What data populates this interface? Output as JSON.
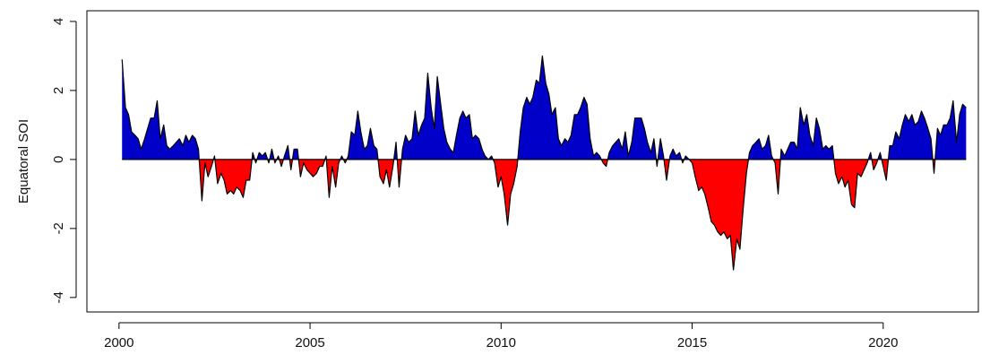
{
  "chart_data": {
    "type": "area",
    "ylabel": "Equatoral SOI",
    "positive_color": "#0000c8",
    "negative_color": "#ff0000",
    "line_color": "#000000",
    "xlim": [
      1999.16,
      2022.49
    ],
    "ylim": [
      -4.42,
      4.31
    ],
    "xticks": [
      2000,
      2005,
      2010,
      2015,
      2020
    ],
    "yticks": [
      -4,
      -2,
      0,
      2,
      4
    ],
    "x": [
      2000.08,
      2000.17,
      2000.25,
      2000.33,
      2000.42,
      2000.5,
      2000.58,
      2000.67,
      2000.75,
      2000.83,
      2000.92,
      2001.0,
      2001.08,
      2001.17,
      2001.25,
      2001.33,
      2001.42,
      2001.5,
      2001.58,
      2001.67,
      2001.75,
      2001.83,
      2001.92,
      2002.0,
      2002.08,
      2002.17,
      2002.25,
      2002.33,
      2002.42,
      2002.5,
      2002.58,
      2002.67,
      2002.75,
      2002.83,
      2002.92,
      2003.0,
      2003.08,
      2003.17,
      2003.25,
      2003.33,
      2003.42,
      2003.5,
      2003.58,
      2003.67,
      2003.75,
      2003.83,
      2003.92,
      2004.0,
      2004.08,
      2004.17,
      2004.25,
      2004.33,
      2004.42,
      2004.5,
      2004.58,
      2004.67,
      2004.75,
      2004.83,
      2004.92,
      2005.0,
      2005.08,
      2005.17,
      2005.25,
      2005.33,
      2005.42,
      2005.5,
      2005.58,
      2005.67,
      2005.75,
      2005.83,
      2005.92,
      2006.0,
      2006.08,
      2006.17,
      2006.25,
      2006.33,
      2006.42,
      2006.5,
      2006.58,
      2006.67,
      2006.75,
      2006.83,
      2006.92,
      2007.0,
      2007.08,
      2007.17,
      2007.25,
      2007.33,
      2007.42,
      2007.5,
      2007.58,
      2007.67,
      2007.75,
      2007.83,
      2007.92,
      2008.0,
      2008.08,
      2008.17,
      2008.25,
      2008.33,
      2008.42,
      2008.5,
      2008.58,
      2008.67,
      2008.75,
      2008.83,
      2008.92,
      2009.0,
      2009.08,
      2009.17,
      2009.25,
      2009.33,
      2009.42,
      2009.5,
      2009.58,
      2009.67,
      2009.75,
      2009.83,
      2009.92,
      2010.0,
      2010.08,
      2010.17,
      2010.25,
      2010.33,
      2010.42,
      2010.5,
      2010.58,
      2010.67,
      2010.75,
      2010.83,
      2010.92,
      2011.0,
      2011.08,
      2011.17,
      2011.25,
      2011.33,
      2011.42,
      2011.5,
      2011.58,
      2011.67,
      2011.75,
      2011.83,
      2011.92,
      2012.0,
      2012.08,
      2012.17,
      2012.25,
      2012.33,
      2012.42,
      2012.5,
      2012.58,
      2012.67,
      2012.75,
      2012.83,
      2012.92,
      2013.0,
      2013.08,
      2013.17,
      2013.25,
      2013.33,
      2013.42,
      2013.5,
      2013.58,
      2013.67,
      2013.75,
      2013.83,
      2013.92,
      2014.0,
      2014.08,
      2014.17,
      2014.25,
      2014.33,
      2014.42,
      2014.5,
      2014.58,
      2014.67,
      2014.75,
      2014.83,
      2014.92,
      2015.0,
      2015.08,
      2015.17,
      2015.25,
      2015.33,
      2015.42,
      2015.5,
      2015.58,
      2015.67,
      2015.75,
      2015.83,
      2015.92,
      2016.0,
      2016.08,
      2016.17,
      2016.25,
      2016.33,
      2016.42,
      2016.5,
      2016.58,
      2016.67,
      2016.75,
      2016.83,
      2016.92,
      2017.0,
      2017.08,
      2017.17,
      2017.25,
      2017.33,
      2017.42,
      2017.5,
      2017.58,
      2017.67,
      2017.75,
      2017.83,
      2017.92,
      2018.0,
      2018.08,
      2018.17,
      2018.25,
      2018.33,
      2018.42,
      2018.5,
      2018.58,
      2018.67,
      2018.75,
      2018.83,
      2018.92,
      2019.0,
      2019.08,
      2019.17,
      2019.25,
      2019.33,
      2019.42,
      2019.5,
      2019.58,
      2019.67,
      2019.75,
      2019.83,
      2019.92,
      2020.0,
      2020.08,
      2020.17,
      2020.25,
      2020.33,
      2020.42,
      2020.5,
      2020.58,
      2020.67,
      2020.75,
      2020.83,
      2020.92,
      2021.0,
      2021.08,
      2021.17,
      2021.25,
      2021.33,
      2021.42,
      2021.5,
      2021.58,
      2021.67,
      2021.75,
      2021.83,
      2021.92,
      2022.0,
      2022.08,
      2022.17
    ],
    "values": [
      2.9,
      1.5,
      1.3,
      0.8,
      0.7,
      0.6,
      0.3,
      0.6,
      0.9,
      1.2,
      1.2,
      1.7,
      0.6,
      1.0,
      0.4,
      0.3,
      0.4,
      0.5,
      0.6,
      0.4,
      0.7,
      0.5,
      0.7,
      0.6,
      0.3,
      -1.2,
      -0.1,
      -0.5,
      -0.2,
      0.1,
      -0.7,
      -0.4,
      -0.6,
      -1.0,
      -0.9,
      -1.0,
      -0.8,
      -0.9,
      -1.1,
      -0.6,
      -0.6,
      0.2,
      -0.1,
      0.2,
      0.1,
      0.2,
      -0.1,
      0.3,
      -0.1,
      0.1,
      -0.2,
      0.1,
      0.4,
      -0.3,
      0.3,
      0.3,
      -0.5,
      -0.1,
      -0.3,
      -0.4,
      -0.5,
      -0.4,
      -0.2,
      -0.2,
      0.1,
      -1.1,
      -0.2,
      -0.8,
      -0.1,
      0.1,
      -0.1,
      0.1,
      0.8,
      0.7,
      1.4,
      0.8,
      0.3,
      0.4,
      0.9,
      0.4,
      0.3,
      -0.5,
      -0.7,
      -0.3,
      -0.8,
      -0.2,
      0.5,
      -0.8,
      0.3,
      0.7,
      0.5,
      0.6,
      1.4,
      0.7,
      1.0,
      1.2,
      2.5,
      1.5,
      0.9,
      2.4,
      1.6,
      0.9,
      0.5,
      0.3,
      0.2,
      0.7,
      1.2,
      1.4,
      1.2,
      1.3,
      0.6,
      0.7,
      0.6,
      0.3,
      0.1,
      0.0,
      0.1,
      -0.1,
      -0.8,
      -0.5,
      -1.0,
      -1.9,
      -1.0,
      -0.7,
      -0.2,
      0.8,
      1.5,
      1.8,
      1.6,
      1.8,
      2.3,
      2.2,
      3.0,
      2.2,
      1.9,
      1.3,
      1.5,
      0.6,
      0.4,
      0.6,
      0.5,
      0.7,
      1.3,
      1.3,
      1.5,
      1.8,
      1.6,
      0.6,
      0.1,
      0.2,
      0.1,
      -0.1,
      -0.2,
      0.2,
      0.4,
      0.5,
      0.6,
      0.3,
      0.8,
      0.1,
      0.5,
      1.2,
      1.2,
      1.2,
      0.9,
      0.5,
      0.2,
      0.6,
      -0.2,
      0.6,
      0.1,
      -0.6,
      0.1,
      0.3,
      0.1,
      0.2,
      -0.1,
      0.1,
      0.0,
      -0.1,
      -0.5,
      -0.9,
      -0.8,
      -1.0,
      -1.4,
      -1.8,
      -1.9,
      -2.1,
      -2.2,
      -2.1,
      -2.3,
      -2.2,
      -3.2,
      -2.3,
      -2.6,
      -1.5,
      -0.4,
      0.2,
      0.4,
      0.5,
      0.6,
      0.3,
      0.4,
      0.7,
      0.1,
      -0.1,
      -1.0,
      0.3,
      0.1,
      0.3,
      0.5,
      0.5,
      0.3,
      1.5,
      1.0,
      1.3,
      0.7,
      0.4,
      1.2,
      0.9,
      0.3,
      0.4,
      0.3,
      0.4,
      -0.4,
      -0.7,
      -0.5,
      -0.8,
      -0.6,
      -1.3,
      -1.4,
      -0.4,
      -0.5,
      -0.3,
      -0.1,
      0.2,
      -0.3,
      -0.1,
      0.2,
      -0.2,
      -0.6,
      0.4,
      0.4,
      0.8,
      0.6,
      1.0,
      1.3,
      1.1,
      1.3,
      1.0,
      1.1,
      1.4,
      1.2,
      0.9,
      0.6,
      -0.4,
      0.9,
      0.7,
      1.0,
      1.0,
      1.2,
      1.7,
      0.5,
      1.3,
      1.6,
      1.5
    ]
  }
}
